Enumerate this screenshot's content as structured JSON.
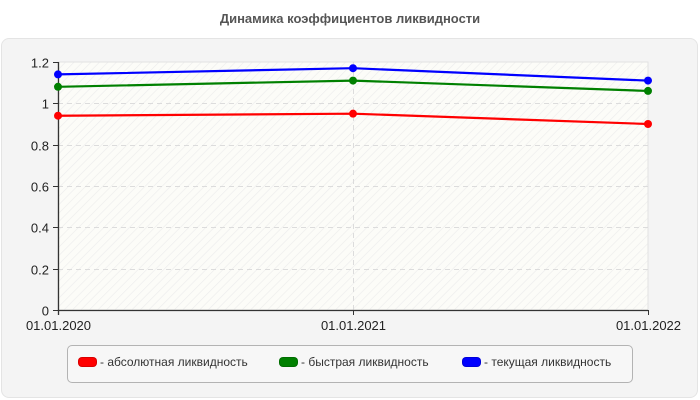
{
  "chart_data": {
    "type": "line",
    "title": "Динамика коэффициентов ликвидности",
    "xlabel": "",
    "ylabel": "",
    "categories": [
      "01.01.2020",
      "01.01.2021",
      "01.01.2022"
    ],
    "series": [
      {
        "name": "абсолютная ликвидность",
        "color": "#ff0000",
        "values": [
          0.94,
          0.95,
          0.9
        ]
      },
      {
        "name": "быстрая ликвидность",
        "color": "#008000",
        "values": [
          1.08,
          1.11,
          1.06
        ]
      },
      {
        "name": "текущая ликвидность",
        "color": "#0000ff",
        "values": [
          1.14,
          1.17,
          1.11
        ]
      }
    ],
    "ylim": [
      0,
      1.2
    ],
    "yticks": [
      "0",
      "0.2",
      "0.4",
      "0.6",
      "0.8",
      "1",
      "1.2"
    ],
    "grid": true,
    "legend_position": "bottom"
  },
  "legend": {
    "items": [
      {
        "label": "- абсолютная ликвидность",
        "color": "#ff0000"
      },
      {
        "label": "- быстрая ликвидность",
        "color": "#008000"
      },
      {
        "label": "- текущая ликвидность",
        "color": "#0000ff"
      }
    ]
  }
}
